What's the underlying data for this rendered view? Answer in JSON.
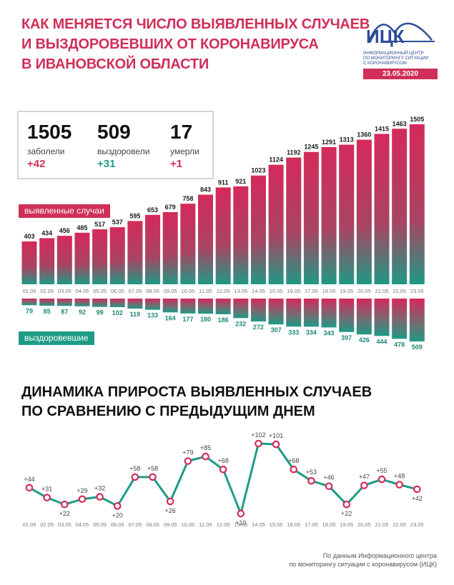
{
  "header": {
    "title_lines": [
      "КАК МЕНЯЕТСЯ ЧИСЛО ВЫЯВЛЕННЫХ СЛУЧАЕВ",
      "И ВЫЗДОРОВЕВШИХ ОТ КОРОНАВИРУСА",
      "В ИВАНОВСКОЙ ОБЛАСТИ"
    ],
    "logo_text": "ИЦК",
    "logo_sub": [
      "ИНФОРМАЦИОННЫЙ ЦЕНТР",
      "ПО МОНИТОРИНГУ СИТУАЦИИ",
      "С КОРОНАВИРУСОМ"
    ],
    "date": "23.05.2020"
  },
  "summary": {
    "cases": {
      "value": "1505",
      "label": "заболели",
      "delta": "+42"
    },
    "recovered": {
      "value": "509",
      "label": "выздоровели",
      "delta": "+31"
    },
    "deaths": {
      "value": "17",
      "label": "умерли",
      "delta": "+1"
    }
  },
  "labels": {
    "cases_series": "выявленные случаи",
    "recovered_series": "выздоровевшие",
    "second_title_lines": [
      "ДИНАМИКА ПРИРОСТА ВЫЯВЛЕННЫХ СЛУЧАЕВ",
      "ПО СРАВНЕНИЮ С ПРЕДЫДУЩИМ ДНЕМ"
    ]
  },
  "colors": {
    "red": "#cf2f59",
    "teal": "#1e9b86",
    "blue": "#2e4c9a"
  },
  "chart_data": [
    {
      "type": "bar",
      "categories": [
        "01.05",
        "02.05",
        "03.05",
        "04.05",
        "05.05",
        "06.05",
        "07.05",
        "08.05",
        "09.05",
        "10.05",
        "11.05",
        "12.05",
        "13.05",
        "14.05",
        "15.05",
        "16.05",
        "17.05",
        "18.05",
        "19.05",
        "20.05",
        "21.05",
        "22.05",
        "23.05"
      ],
      "series": [
        {
          "name": "выявленные случаи",
          "values": [
            403,
            434,
            456,
            485,
            517,
            537,
            595,
            653,
            679,
            758,
            843,
            911,
            921,
            1023,
            1124,
            1192,
            1245,
            1291,
            1313,
            1360,
            1415,
            1463,
            1505
          ]
        },
        {
          "name": "выздоровевшие",
          "values": [
            79,
            85,
            87,
            92,
            99,
            102,
            119,
            133,
            164,
            177,
            180,
            186,
            232,
            272,
            307,
            333,
            334,
            343,
            397,
            426,
            444,
            478,
            509
          ]
        }
      ]
    },
    {
      "type": "line",
      "categories": [
        "01.05",
        "02.05",
        "03.05",
        "04.05",
        "05.05",
        "06.05",
        "07.05",
        "08.05",
        "09.05",
        "10.05",
        "11.05",
        "12.05",
        "13.05",
        "14.05",
        "15.05",
        "16.05",
        "17.05",
        "18.05",
        "19.05",
        "20.05",
        "21.05",
        "22.05",
        "23.05"
      ],
      "values": [
        44,
        31,
        22,
        29,
        32,
        20,
        58,
        58,
        26,
        79,
        85,
        68,
        10,
        102,
        101,
        68,
        53,
        46,
        22,
        47,
        55,
        48,
        42
      ],
      "value_labels": [
        "+44",
        "+31",
        "+22",
        "+29",
        "+32",
        "+20",
        "+58",
        "+58",
        "+26",
        "+79",
        "+85",
        "+68",
        "+10",
        "+102",
        "+101",
        "+68",
        "+53",
        "+46",
        "+22",
        "+47",
        "+55",
        "+48",
        "+42"
      ],
      "title": "ДИНАМИКА ПРИРОСТА ВЫЯВЛЕННЫХ СЛУЧАЕВ ПО СРАВНЕНИЮ С ПРЕДЫДУЩИМ ДНЕМ"
    }
  ],
  "footer": {
    "lines": [
      "По данным Информационного центра",
      "по мониторингу ситуации с коронавирусом (ИЦК)"
    ]
  }
}
